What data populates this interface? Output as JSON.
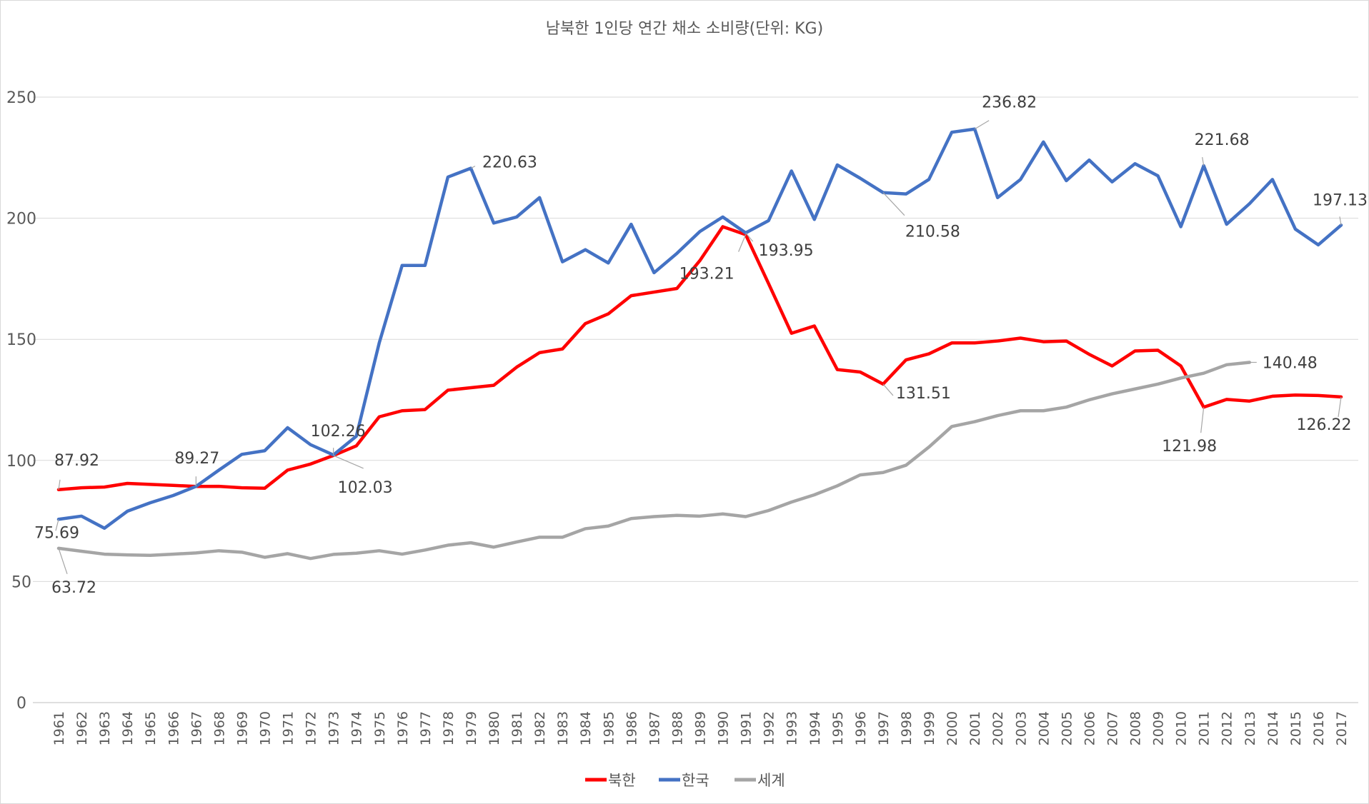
{
  "chart_data": {
    "type": "line",
    "title": "남북한 1인당 연간 채소 소비량(단위: KG)",
    "xlabel": "",
    "ylabel": "",
    "ylim": [
      0,
      250
    ],
    "yticks": [
      0,
      50,
      100,
      150,
      200,
      250
    ],
    "grid": true,
    "legend_position": "bottom",
    "categories": [
      "1961",
      "1962",
      "1963",
      "1964",
      "1965",
      "1966",
      "1967",
      "1968",
      "1969",
      "1970",
      "1971",
      "1972",
      "1973",
      "1974",
      "1975",
      "1976",
      "1977",
      "1978",
      "1979",
      "1980",
      "1981",
      "1982",
      "1983",
      "1984",
      "1985",
      "1986",
      "1987",
      "1988",
      "1989",
      "1990",
      "1991",
      "1992",
      "1993",
      "1994",
      "1995",
      "1996",
      "1997",
      "1998",
      "1999",
      "2000",
      "2001",
      "2002",
      "2003",
      "2004",
      "2005",
      "2006",
      "2007",
      "2008",
      "2009",
      "2010",
      "2011",
      "2012",
      "2013",
      "2014",
      "2015",
      "2016",
      "2017"
    ],
    "series": [
      {
        "name": "북한",
        "color": "#ff0000",
        "values": [
          87.92,
          88.7,
          89.0,
          90.5,
          90.1,
          89.7,
          89.27,
          89.3,
          88.7,
          88.5,
          96.0,
          98.5,
          102.03,
          106.0,
          118.0,
          120.5,
          121.0,
          129.0,
          130.0,
          131.0,
          138.5,
          144.5,
          146.0,
          156.5,
          160.5,
          168.0,
          169.5,
          171.0,
          182.5,
          196.5,
          193.21,
          173.0,
          152.5,
          155.5,
          137.5,
          136.5,
          131.51,
          141.5,
          144.0,
          148.5,
          148.5,
          149.3,
          150.5,
          149.0,
          149.3,
          143.8,
          139.0,
          145.2,
          145.5,
          139.0,
          121.98,
          125.2,
          124.5,
          126.5,
          127.0,
          126.8,
          126.22
        ]
      },
      {
        "name": "한국",
        "color": "#4472c4",
        "values": [
          75.69,
          77.0,
          72.0,
          79.0,
          82.5,
          85.5,
          89.27,
          96.0,
          102.5,
          104.0,
          113.5,
          106.5,
          102.26,
          110.0,
          148.5,
          180.5,
          180.5,
          217.0,
          220.63,
          198.0,
          200.5,
          208.5,
          182.0,
          187.0,
          181.5,
          197.5,
          177.5,
          185.5,
          194.5,
          200.5,
          193.95,
          199.0,
          219.5,
          199.5,
          222.0,
          216.5,
          210.58,
          210.0,
          216.0,
          235.5,
          236.82,
          208.5,
          216.0,
          231.5,
          215.5,
          224.0,
          215.0,
          222.5,
          217.5,
          196.5,
          221.68,
          197.5,
          206.0,
          216.0,
          195.5,
          189.0,
          197.13
        ]
      },
      {
        "name": "세계",
        "color": "#a5a5a5",
        "values": [
          63.72,
          62.5,
          61.3,
          61.0,
          60.8,
          61.3,
          61.8,
          62.7,
          62.1,
          60.0,
          61.5,
          59.5,
          61.2,
          61.7,
          62.7,
          61.3,
          63.0,
          65.0,
          66.0,
          64.2,
          66.3,
          68.3,
          68.3,
          71.8,
          72.9,
          76.0,
          76.8,
          77.3,
          77.0,
          77.9,
          76.8,
          79.3,
          82.8,
          85.8,
          89.5,
          94.0,
          95.0,
          98.0,
          105.5,
          114.0,
          116.0,
          118.5,
          120.5,
          120.5,
          122.0,
          125.0,
          127.5,
          129.5,
          131.5,
          134.0,
          136.0,
          139.5,
          140.48,
          null,
          null,
          null,
          null
        ]
      }
    ],
    "data_labels": [
      {
        "series": "북한",
        "category": "1961",
        "text": "87.92"
      },
      {
        "series": "북한",
        "category": "1973",
        "text": "102.03"
      },
      {
        "series": "북한",
        "category": "1991",
        "text": "193.21"
      },
      {
        "series": "북한",
        "category": "1997",
        "text": "131.51"
      },
      {
        "series": "북한",
        "category": "2011",
        "text": "121.98"
      },
      {
        "series": "북한",
        "category": "2017",
        "text": "126.22"
      },
      {
        "series": "한국",
        "category": "1961",
        "text": "75.69"
      },
      {
        "series": "한국",
        "category": "1967",
        "text": "89.27"
      },
      {
        "series": "한국",
        "category": "1973",
        "text": "102.26"
      },
      {
        "series": "한국",
        "category": "1979",
        "text": "220.63"
      },
      {
        "series": "한국",
        "category": "1991",
        "text": "193.95"
      },
      {
        "series": "한국",
        "category": "1997",
        "text": "210.58"
      },
      {
        "series": "한국",
        "category": "2001",
        "text": "236.82"
      },
      {
        "series": "한국",
        "category": "2011",
        "text": "221.68"
      },
      {
        "series": "한국",
        "category": "2017",
        "text": "197.13"
      },
      {
        "series": "세계",
        "category": "1961",
        "text": "63.72"
      },
      {
        "series": "세계",
        "category": "2013",
        "text": "140.48"
      }
    ]
  }
}
